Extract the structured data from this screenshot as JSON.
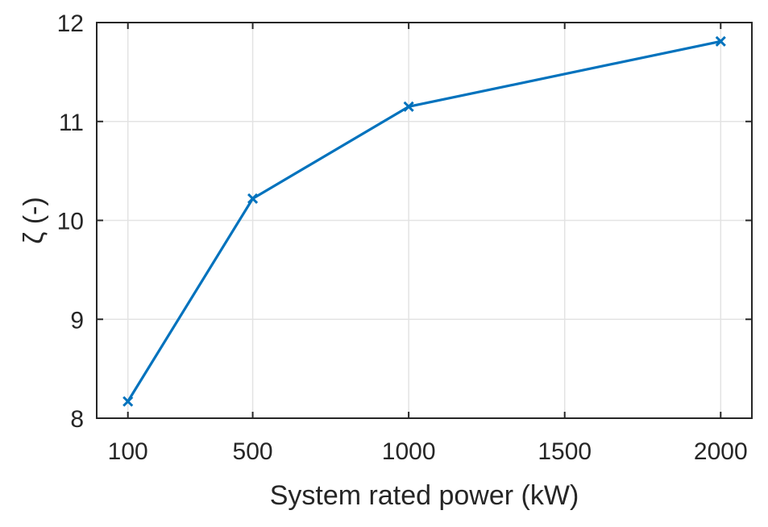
{
  "chart_data": {
    "type": "line",
    "x": [
      100,
      500,
      1000,
      2000
    ],
    "series": [
      {
        "values": [
          8.17,
          10.22,
          11.15,
          11.81
        ],
        "color": "#0072BD",
        "marker": "x"
      }
    ],
    "xlabel": "System rated power (kW)",
    "ylabel": "ζ (-)",
    "xlim": [
      0,
      2100
    ],
    "ylim": [
      8,
      12
    ],
    "xticks": [
      100,
      500,
      1000,
      1500,
      2000
    ],
    "xtick_labels": [
      "100",
      "500",
      "1000",
      "1500",
      "2000"
    ],
    "yticks": [
      8,
      9,
      10,
      11,
      12
    ],
    "ytick_labels": [
      "8",
      "9",
      "10",
      "11",
      "12"
    ],
    "grid": true
  }
}
